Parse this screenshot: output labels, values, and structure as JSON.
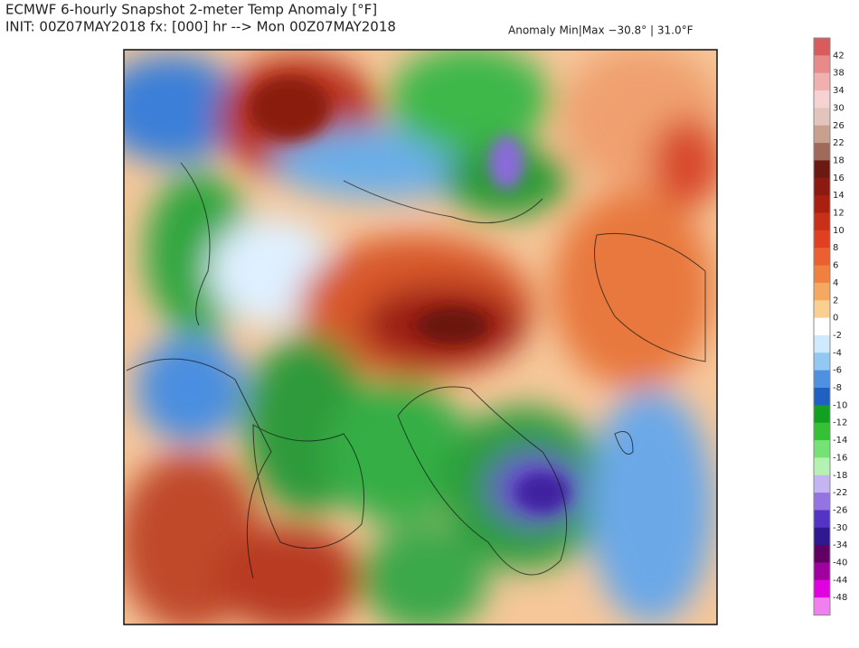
{
  "header": {
    "title": "ECMWF 6-hourly Snapshot 2-meter Temp Anomaly [°F]",
    "init": "INIT: 00Z07MAY2018 fx: [000] hr --> Mon 00Z07MAY2018",
    "minmax": "Anomaly Min|Max −30.8° | 31.0°F"
  },
  "colorbar": {
    "labels": [
      42,
      38,
      34,
      30,
      26,
      22,
      18,
      16,
      14,
      12,
      10,
      8,
      6,
      4,
      2,
      0,
      -2,
      -4,
      -6,
      -8,
      -10,
      -12,
      -14,
      -16,
      -18,
      -22,
      -26,
      -30,
      -34,
      -40,
      -44,
      -48
    ]
  }
}
